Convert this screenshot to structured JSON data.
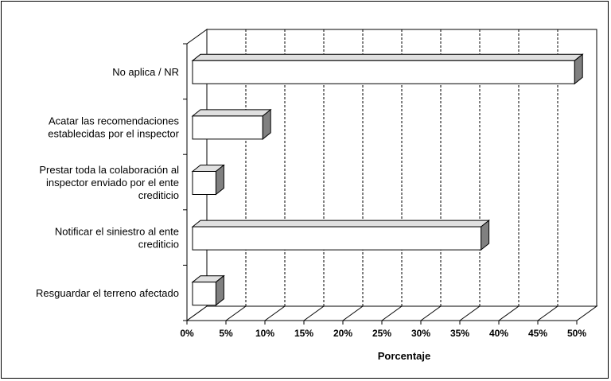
{
  "chart_data": {
    "type": "bar3d_horizontal",
    "categories": [
      "No aplica / NR",
      "Acatar las recomendaciones\nestablecidas por el inspector",
      "Prestar toda la colaboración al\ninspector enviado por el ente\ncrediticio",
      "Notificar el siniestro al ente\ncrediticio",
      "Resguardar el terreno afectado"
    ],
    "values": [
      49,
      9,
      3,
      37,
      3
    ],
    "color": "#ffffff",
    "xlim": [
      0,
      50
    ],
    "xticks": [
      {
        "value": 0,
        "label": "0%"
      },
      {
        "value": 5,
        "label": "5%"
      },
      {
        "value": 10,
        "label": "10%"
      },
      {
        "value": 15,
        "label": "15%"
      },
      {
        "value": 20,
        "label": "20%"
      },
      {
        "value": 25,
        "label": "25%"
      },
      {
        "value": 30,
        "label": "30%"
      },
      {
        "value": 35,
        "label": "35%"
      },
      {
        "value": 40,
        "label": "40%"
      },
      {
        "value": 45,
        "label": "45%"
      },
      {
        "value": 50,
        "label": "50%"
      }
    ],
    "x_label": "Porcentaje",
    "grid": true
  }
}
